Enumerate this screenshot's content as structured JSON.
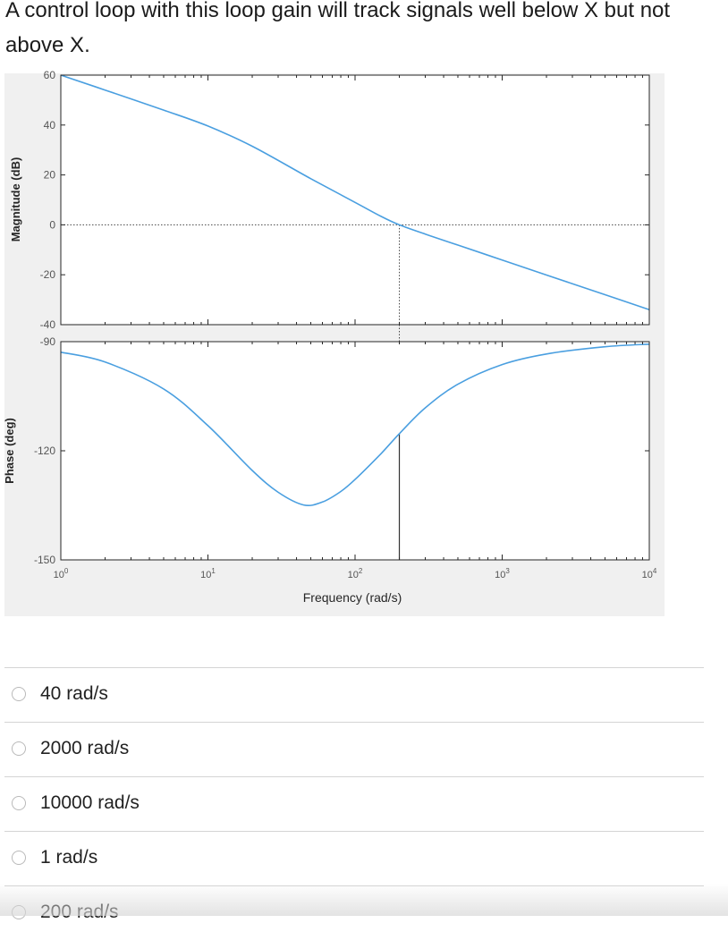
{
  "question": {
    "text": "A control loop with this loop gain will track signals well below X but not above X."
  },
  "chart_data": [
    {
      "type": "line",
      "panel": "magnitude",
      "ylabel": "Magnitude (dB)",
      "xscale": "log",
      "xlim": [
        1,
        10000
      ],
      "ylim": [
        -40,
        60
      ],
      "yticks": [
        60,
        40,
        20,
        0,
        -20,
        -40
      ],
      "series": [
        {
          "color": "#4a9fe0",
          "x": [
            1,
            2,
            5,
            10,
            20,
            50,
            100,
            150,
            200,
            300,
            500,
            1000,
            2000,
            5000,
            10000
          ],
          "y": [
            60,
            54,
            46,
            39.6,
            31.5,
            18.5,
            9,
            3.4,
            0,
            -3.7,
            -8.1,
            -14.1,
            -20.1,
            -28,
            -34
          ]
        }
      ],
      "reference_line": {
        "y": 0,
        "style": "dotted"
      },
      "crossover_marker": {
        "x": 200,
        "style": "dotted"
      }
    },
    {
      "type": "line",
      "panel": "phase",
      "ylabel": "Phase (deg)",
      "xlabel": "Frequency (rad/s)",
      "xscale": "log",
      "xlim": [
        1,
        10000
      ],
      "ylim": [
        -150,
        -90
      ],
      "yticks": [
        -90,
        -120,
        -150
      ],
      "xtick_labels": [
        "10^0",
        "10^1",
        "10^2",
        "10^3",
        "10^4"
      ],
      "series": [
        {
          "color": "#4a9fe0",
          "x": [
            1,
            2,
            5,
            10,
            20,
            30,
            44.7,
            60,
            80,
            100,
            150,
            200,
            300,
            500,
            1000,
            2000,
            5000,
            10000
          ],
          "y": [
            -92.9,
            -95.6,
            -103,
            -113.1,
            -125.4,
            -131.4,
            -134.9,
            -134.1,
            -131.2,
            -127.9,
            -120.8,
            -115.3,
            -108.2,
            -101.7,
            -96.3,
            -93.4,
            -91.4,
            -90.7
          ]
        }
      ],
      "crossover_marker": {
        "x": 200,
        "style": "solid"
      }
    }
  ],
  "options": [
    {
      "label": "40 rad/s"
    },
    {
      "label": "2000 rad/s"
    },
    {
      "label": "10000 rad/s"
    },
    {
      "label": "1 rad/s"
    },
    {
      "label": "200 rad/s"
    }
  ]
}
